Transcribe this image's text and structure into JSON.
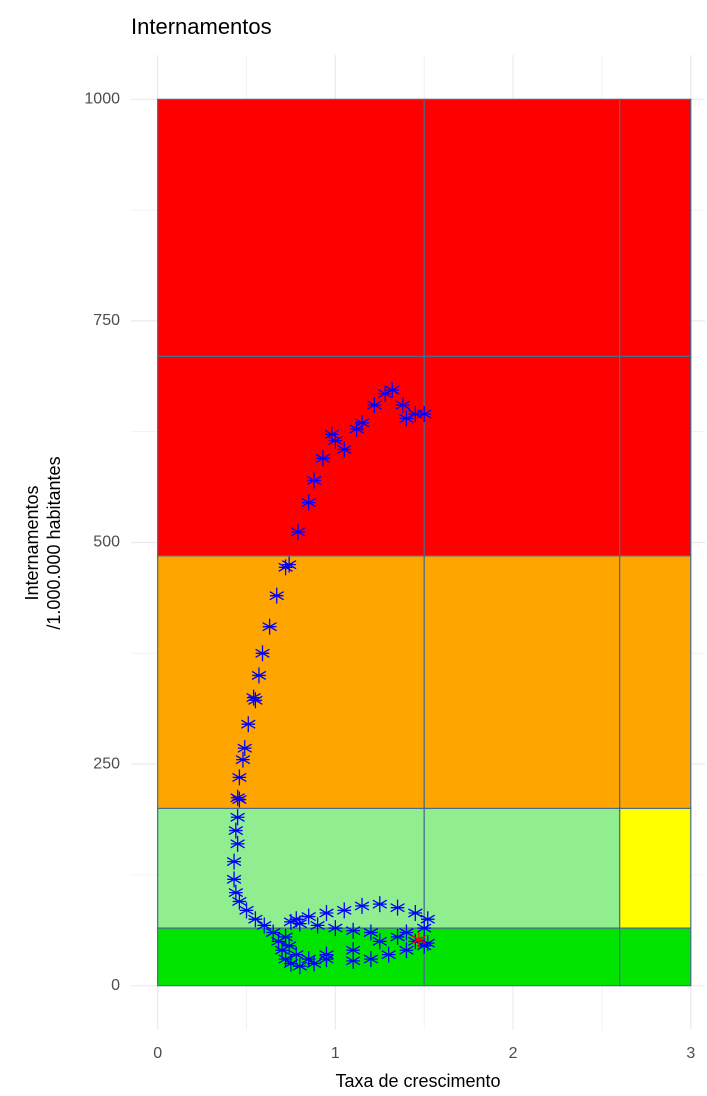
{
  "chart_data": {
    "type": "scatter",
    "title": "Internamentos",
    "xlabel": "Taxa de crescimento",
    "ylabel": [
      "Internamentos",
      "/1.000.000 habitantes"
    ],
    "xlim": [
      -0.15,
      3.08
    ],
    "ylim": [
      -50,
      1050
    ],
    "xticks": [
      0,
      1,
      2,
      3
    ],
    "yticks": [
      0,
      250,
      500,
      750,
      1000
    ],
    "x_minor_ticks": [
      0.5,
      1.5,
      2.5
    ],
    "y_minor_ticks": [
      125,
      375,
      625,
      875
    ],
    "grid": true,
    "zone_x_breaks": [
      0,
      1.5,
      2.6,
      3
    ],
    "zone_y_breaks": [
      0,
      65,
      200,
      485,
      710,
      1000
    ],
    "zone_colors": [
      [
        "#00e400",
        "#00e400",
        "#00e400"
      ],
      [
        "#90ee90",
        "#90ee90",
        "#ffff00"
      ],
      [
        "#ffa500",
        "#ffa500",
        "#ffa500"
      ],
      [
        "#ff0000",
        "#ff0000",
        "#ff0000"
      ],
      [
        "#ff0000",
        "#ff0000",
        "#ff0000"
      ]
    ],
    "zone_border_color": "#4a6c8c",
    "series": [
      {
        "color": "#0000ff",
        "x": [
          1.5,
          1.45,
          1.4,
          1.38,
          1.32,
          1.28,
          1.22,
          1.15,
          1.12,
          1.05,
          1.0,
          0.98,
          0.93,
          0.88,
          0.85,
          0.79,
          0.74,
          0.72,
          0.67,
          0.63,
          0.59,
          0.57,
          0.54,
          0.55,
          0.51,
          0.49,
          0.48,
          0.46,
          0.45,
          0.46,
          0.45,
          0.44,
          0.45,
          0.43,
          0.43,
          0.44,
          0.46,
          0.5,
          0.55,
          0.6,
          0.65,
          0.68,
          0.7,
          0.72,
          0.75,
          0.8,
          0.88,
          0.95,
          1.1,
          1.2,
          1.3,
          1.4,
          1.5,
          1.52,
          1.45,
          1.35,
          1.2,
          1.1,
          1.0,
          0.9,
          0.8,
          0.75,
          0.78,
          0.85,
          0.95,
          1.05,
          1.15,
          1.25,
          1.35,
          1.45,
          1.52,
          1.5,
          1.4,
          1.25,
          1.1,
          0.95,
          0.85,
          0.78,
          0.74,
          0.72
        ],
        "y": [
          645,
          645,
          640,
          655,
          672,
          668,
          655,
          635,
          628,
          605,
          615,
          622,
          595,
          570,
          545,
          512,
          475,
          472,
          440,
          405,
          375,
          350,
          325,
          322,
          295,
          268,
          255,
          235,
          212,
          210,
          190,
          175,
          160,
          140,
          120,
          105,
          95,
          85,
          75,
          68,
          60,
          50,
          40,
          30,
          25,
          22,
          25,
          30,
          28,
          30,
          35,
          40,
          45,
          48,
          50,
          55,
          60,
          62,
          65,
          68,
          70,
          72,
          75,
          78,
          82,
          85,
          90,
          92,
          88,
          82,
          75,
          65,
          60,
          50,
          40,
          35,
          30,
          35,
          45,
          55
        ]
      },
      {
        "color": "#ff0000",
        "x": [
          1.47
        ],
        "y": [
          52
        ]
      }
    ]
  }
}
